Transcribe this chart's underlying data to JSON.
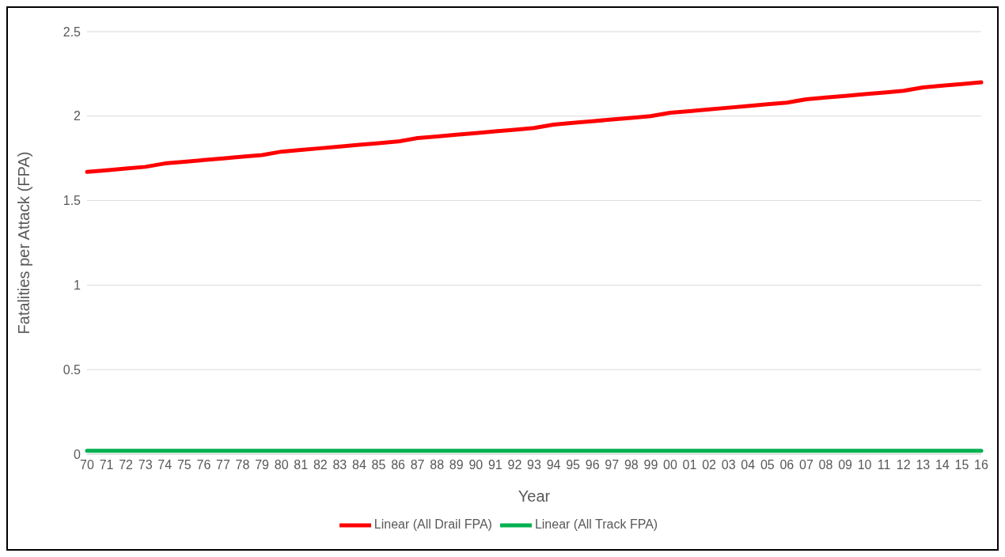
{
  "chart_data": {
    "type": "line",
    "xlabel": "Year",
    "ylabel": "Fatalities per Attack (FPA)",
    "categories": [
      "70",
      "71",
      "72",
      "73",
      "74",
      "75",
      "76",
      "77",
      "78",
      "79",
      "80",
      "81",
      "82",
      "83",
      "84",
      "85",
      "86",
      "87",
      "88",
      "89",
      "90",
      "91",
      "92",
      "93",
      "94",
      "95",
      "96",
      "97",
      "98",
      "99",
      "00",
      "01",
      "02",
      "03",
      "04",
      "05",
      "06",
      "07",
      "08",
      "09",
      "10",
      "11",
      "12",
      "13",
      "14",
      "15",
      "16"
    ],
    "series": [
      {
        "name": "Linear (All Drail FPA)",
        "color": "#ff0000",
        "values": [
          1.67,
          1.68,
          1.69,
          1.7,
          1.72,
          1.73,
          1.74,
          1.75,
          1.76,
          1.77,
          1.79,
          1.8,
          1.81,
          1.82,
          1.83,
          1.84,
          1.85,
          1.87,
          1.88,
          1.89,
          1.9,
          1.91,
          1.92,
          1.93,
          1.95,
          1.96,
          1.97,
          1.98,
          1.99,
          2.0,
          2.02,
          2.03,
          2.04,
          2.05,
          2.06,
          2.07,
          2.08,
          2.1,
          2.11,
          2.12,
          2.13,
          2.14,
          2.15,
          2.17,
          2.18,
          2.19,
          2.2
        ]
      },
      {
        "name": "Linear (All Track FPA)",
        "color": "#00b050",
        "values": [
          0.02,
          0.02,
          0.02,
          0.02,
          0.02,
          0.02,
          0.02,
          0.02,
          0.02,
          0.02,
          0.02,
          0.02,
          0.02,
          0.02,
          0.02,
          0.02,
          0.02,
          0.02,
          0.02,
          0.02,
          0.02,
          0.02,
          0.02,
          0.02,
          0.02,
          0.02,
          0.02,
          0.02,
          0.02,
          0.02,
          0.02,
          0.02,
          0.02,
          0.02,
          0.02,
          0.02,
          0.02,
          0.02,
          0.02,
          0.02,
          0.02,
          0.02,
          0.02,
          0.02,
          0.02,
          0.02,
          0.02
        ]
      }
    ],
    "ylim": [
      0,
      2.5
    ],
    "yticks": [
      0,
      0.5,
      1,
      1.5,
      2,
      2.5
    ],
    "grid": "y",
    "legend": "bottom",
    "marker": "none",
    "line_style": "solid"
  }
}
